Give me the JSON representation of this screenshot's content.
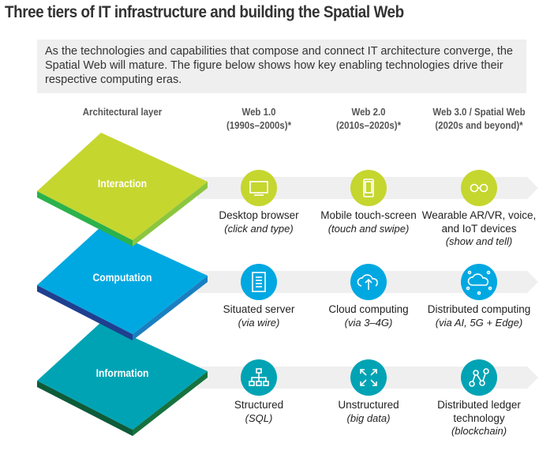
{
  "title": "Three tiers of IT infrastructure and building the Spatial Web",
  "intro": "As the technologies and capabilities that compose and connect IT architecture converge, the Spatial Web will mature. The figure below shows how key enabling technologies drive their respective computing eras.",
  "headers": {
    "layer": "Architectural layer",
    "web1": [
      "Web 1.0",
      "(1990s–2000s)*"
    ],
    "web2": [
      "Web 2.0",
      "(2010s–2020s)*"
    ],
    "web3": [
      "Web 3.0 / Spatial Web",
      "(2020s and beyond)*"
    ]
  },
  "colors": {
    "interaction": "#c5d62f",
    "computation": "#00a8e1",
    "information": "#00a3b4",
    "band": "#efefef"
  },
  "layers": [
    {
      "name": "Interaction",
      "items": [
        {
          "icon": "monitor-icon",
          "title": "Desktop browser",
          "sub": "(click and type)"
        },
        {
          "icon": "smartphone-icon",
          "title": "Mobile touch-screen",
          "sub": "(touch and swipe)"
        },
        {
          "icon": "glasses-icon",
          "title": "Wearable AR/VR, voice, and IoT devices",
          "sub": "(show and tell)"
        }
      ]
    },
    {
      "name": "Computation",
      "items": [
        {
          "icon": "server-icon",
          "title": "Situated server",
          "sub": "(via wire)"
        },
        {
          "icon": "cloud-upload-icon",
          "title": "Cloud computing",
          "sub": "(via 3–4G)"
        },
        {
          "icon": "cloud-network-icon",
          "title": "Distributed computing",
          "sub": "(via AI, 5G + Edge)"
        }
      ]
    },
    {
      "name": "Information",
      "items": [
        {
          "icon": "hierarchy-icon",
          "title": "Structured",
          "sub": "(SQL)"
        },
        {
          "icon": "expand-arrows-icon",
          "title": "Unstructured",
          "sub": "(big data)"
        },
        {
          "icon": "ledger-nodes-icon",
          "title": "Distributed ledger technology",
          "sub": "(blockchain)"
        }
      ]
    }
  ]
}
